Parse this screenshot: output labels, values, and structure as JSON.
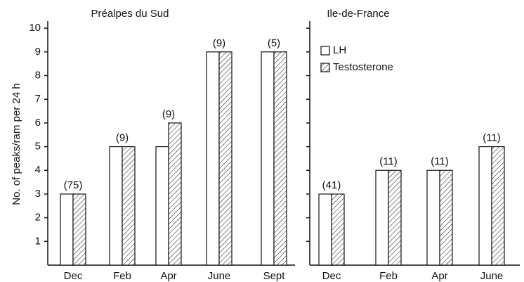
{
  "chart_data": [
    {
      "type": "bar",
      "title": "Préalpes du Sud",
      "ylabel": "No. of peaks/ram per 24 h",
      "categories": [
        "Dec",
        "Feb",
        "Apr",
        "June",
        "Sept"
      ],
      "annotations": [
        "(75)",
        "(9)",
        "(9)",
        "(9)",
        "(5)"
      ],
      "series": [
        {
          "color": "#ffffff",
          "pattern": "none",
          "values": [
            3,
            5,
            5,
            9,
            9
          ]
        },
        {
          "color": "#ffffff",
          "pattern": "hatch",
          "values": [
            3,
            5,
            6,
            9,
            9
          ]
        }
      ],
      "ylim": [
        0,
        10.3
      ],
      "yticks": [
        1,
        2,
        3,
        4,
        5,
        6,
        7,
        8,
        9,
        10
      ],
      "ytick_labels": true,
      "legend": false
    },
    {
      "type": "bar",
      "title": "Ile-de-France",
      "categories": [
        "Dec",
        "Feb",
        "Apr",
        "June"
      ],
      "annotations": [
        "(41)",
        "(11)",
        "(11)",
        "(11)"
      ],
      "series": [
        {
          "name": "LH",
          "color": "#ffffff",
          "pattern": "none",
          "values": [
            3,
            4,
            4,
            5
          ]
        },
        {
          "name": "Testosterone",
          "color": "#ffffff",
          "pattern": "hatch",
          "values": [
            3,
            4,
            4,
            5
          ]
        }
      ],
      "ylim": [
        0,
        10.3
      ],
      "yticks": [
        1,
        2,
        3,
        4,
        5,
        6,
        7,
        8,
        9,
        10
      ],
      "ytick_labels": false,
      "legend": true
    }
  ]
}
